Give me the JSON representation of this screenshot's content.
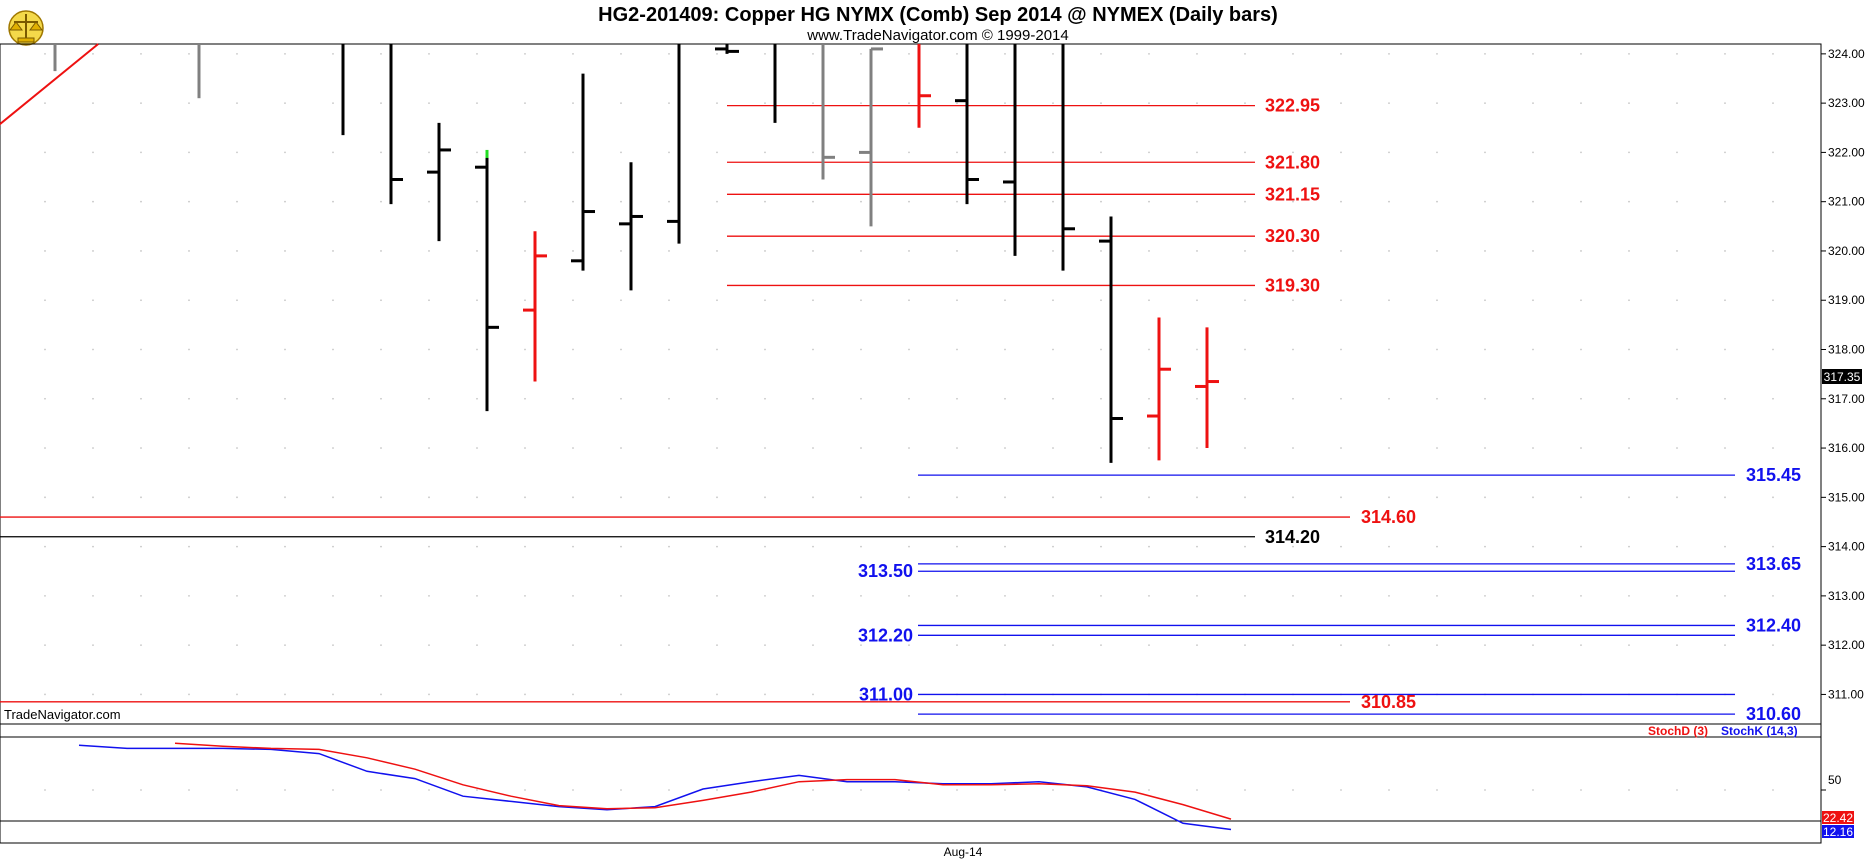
{
  "header": {
    "title": "HG2-201409:  Copper HG NYMX (Comb) Sep 2014 @ NYMEX  (Daily bars)",
    "subtitle": "www.TradeNavigator.com © 1999-2014",
    "logo_icon": "trade-navigator-scale-logo"
  },
  "watermark": "TradeNavigator.com",
  "colors": {
    "black": "#000000",
    "red": "#ee1111",
    "blue": "#1111ee",
    "gray": "#808080",
    "green": "#22dd22",
    "grid": "#c8c8c8"
  },
  "chart_data": [
    {
      "type": "ohlc",
      "title": "HG2-201409:  Copper HG NYMX (Comb) Sep 2014 @ NYMEX  (Daily bars)",
      "xlabel": "Aug-14",
      "ylim": [
        310.4,
        324.2
      ],
      "y_ticks": [
        "324.00",
        "323.00",
        "322.00",
        "321.00",
        "320.00",
        "319.00",
        "318.00",
        "317.00",
        "316.00",
        "315.00",
        "314.00",
        "313.00",
        "312.00",
        "311.00"
      ],
      "last_price": "317.35",
      "bars": [
        {
          "i": 1,
          "color": "gray",
          "high": 324.2,
          "low": 323.65,
          "open": null,
          "close": null
        },
        {
          "i": 4,
          "color": "gray",
          "high": 324.2,
          "low": 323.1,
          "open": null,
          "close": null
        },
        {
          "i": 7,
          "color": "black",
          "high": 324.2,
          "low": 322.35,
          "open": null,
          "close": null
        },
        {
          "i": 8,
          "color": "black",
          "high": 324.2,
          "low": 320.95,
          "open": null,
          "close": 321.45
        },
        {
          "i": 9,
          "color": "black",
          "high": 322.6,
          "low": 320.2,
          "open": 321.6,
          "close": 322.05
        },
        {
          "i": 10,
          "color": "black",
          "high": 322.05,
          "low": 316.75,
          "open": 321.7,
          "close": 318.45,
          "high_marker": "green"
        },
        {
          "i": 11,
          "color": "red",
          "high": 320.4,
          "low": 317.35,
          "open": 318.8,
          "close": 319.9
        },
        {
          "i": 12,
          "color": "black",
          "high": 323.6,
          "low": 319.6,
          "open": 319.8,
          "close": 320.8
        },
        {
          "i": 13,
          "color": "black",
          "high": 321.8,
          "low": 319.2,
          "open": 320.55,
          "close": 320.7
        },
        {
          "i": 14,
          "color": "black",
          "high": 324.2,
          "low": 320.15,
          "open": 320.6,
          "close": null
        },
        {
          "i": 15,
          "color": "black",
          "high": 324.2,
          "low": 324.0,
          "open": 324.1,
          "close": 324.05
        },
        {
          "i": 16,
          "color": "black",
          "high": 324.2,
          "low": 322.6,
          "open": null,
          "close": null
        },
        {
          "i": 17,
          "color": "gray",
          "high": 324.2,
          "low": 321.45,
          "open": null,
          "close": 321.9
        },
        {
          "i": 18,
          "color": "gray",
          "high": 324.1,
          "low": 320.5,
          "open": 322.0,
          "close": 324.1
        },
        {
          "i": 19,
          "color": "red",
          "high": 324.2,
          "low": 322.5,
          "open": null,
          "close": 323.15
        },
        {
          "i": 20,
          "color": "black",
          "high": 324.2,
          "low": 320.95,
          "open": 323.05,
          "close": 321.45
        },
        {
          "i": 21,
          "color": "black",
          "high": 324.2,
          "low": 319.9,
          "open": 321.4,
          "close": null
        },
        {
          "i": 22,
          "color": "black",
          "high": 324.2,
          "low": 319.6,
          "open": null,
          "close": 320.45
        },
        {
          "i": 23,
          "color": "black",
          "high": 320.7,
          "low": 315.7,
          "open": 320.2,
          "close": 316.6
        },
        {
          "i": 24,
          "color": "red",
          "high": 318.65,
          "low": 315.75,
          "open": 316.65,
          "close": 317.6
        },
        {
          "i": 25,
          "color": "red",
          "high": 318.45,
          "low": 316.0,
          "open": 317.25,
          "close": 317.35
        }
      ],
      "levels": [
        {
          "label": "322.95",
          "value": 322.95,
          "color": "red",
          "span": "mid",
          "label_pos": "mid-right"
        },
        {
          "label": "321.80",
          "value": 321.8,
          "color": "red",
          "span": "mid",
          "label_pos": "mid-right"
        },
        {
          "label": "321.15",
          "value": 321.15,
          "color": "red",
          "span": "mid",
          "label_pos": "mid-right"
        },
        {
          "label": "320.30",
          "value": 320.3,
          "color": "red",
          "span": "mid",
          "label_pos": "mid-right"
        },
        {
          "label": "319.30",
          "value": 319.3,
          "color": "red",
          "span": "mid",
          "label_pos": "mid-right"
        },
        {
          "label": "315.45",
          "value": 315.45,
          "color": "blue",
          "span": "right",
          "label_pos": "far-right"
        },
        {
          "label": "314.60",
          "value": 314.6,
          "color": "red",
          "span": "full",
          "label_pos": "mid-right2"
        },
        {
          "label": "314.20",
          "value": 314.2,
          "color": "black",
          "span": "full",
          "label_pos": "mid-right"
        },
        {
          "label": "313.65",
          "value": 313.65,
          "color": "blue",
          "span": "right",
          "label_pos": "far-right"
        },
        {
          "label": "313.50",
          "value": 313.5,
          "color": "blue",
          "span": "right",
          "label_pos": "left-of-line"
        },
        {
          "label": "312.40",
          "value": 312.4,
          "color": "blue",
          "span": "right",
          "label_pos": "far-right"
        },
        {
          "label": "312.20",
          "value": 312.2,
          "color": "blue",
          "span": "right",
          "label_pos": "left-of-line"
        },
        {
          "label": "311.00",
          "value": 311.0,
          "color": "blue",
          "span": "right",
          "label_pos": "left-of-line"
        },
        {
          "label": "310.85",
          "value": 310.85,
          "color": "red",
          "span": "full",
          "label_pos": "mid-right2"
        },
        {
          "label": "310.60",
          "value": 310.6,
          "color": "blue",
          "span": "right",
          "label_pos": "far-right"
        }
      ],
      "diagonal_trendline": {
        "color": "red",
        "from": {
          "i": -1.5,
          "y": 321.5
        },
        "to": {
          "i": 1.9,
          "y": 324.2
        }
      }
    },
    {
      "type": "line",
      "title": "",
      "ylim": [
        0,
        100
      ],
      "y_ticks": [
        "50"
      ],
      "legend": [
        {
          "name": "StochD (3)",
          "color": "red"
        },
        {
          "name": "StochK (14,3)",
          "color": "blue"
        }
      ],
      "last_values": {
        "StochD (3)": "22.42",
        "StochK (14,3)": "12.16"
      },
      "series": [
        {
          "name": "StochK (14,3)",
          "color": "blue",
          "values": [
            {
              "i": 1.5,
              "v": 93
            },
            {
              "i": 2.5,
              "v": 90
            },
            {
              "i": 3.5,
              "v": 90
            },
            {
              "i": 4.5,
              "v": 90
            },
            {
              "i": 5.5,
              "v": 89
            },
            {
              "i": 6.5,
              "v": 85
            },
            {
              "i": 7.5,
              "v": 68
            },
            {
              "i": 8.5,
              "v": 61
            },
            {
              "i": 9.5,
              "v": 44
            },
            {
              "i": 10.5,
              "v": 39
            },
            {
              "i": 11.5,
              "v": 34
            },
            {
              "i": 12.5,
              "v": 31
            },
            {
              "i": 13.5,
              "v": 34
            },
            {
              "i": 14.5,
              "v": 51
            },
            {
              "i": 15.5,
              "v": 58
            },
            {
              "i": 16.5,
              "v": 64
            },
            {
              "i": 17.5,
              "v": 58
            },
            {
              "i": 18.5,
              "v": 58
            },
            {
              "i": 19.5,
              "v": 56
            },
            {
              "i": 20.5,
              "v": 56
            },
            {
              "i": 21.5,
              "v": 58
            },
            {
              "i": 22.5,
              "v": 53
            },
            {
              "i": 23.5,
              "v": 41
            },
            {
              "i": 24.5,
              "v": 18
            },
            {
              "i": 25.5,
              "v": 12
            }
          ]
        },
        {
          "name": "StochD (3)",
          "color": "red",
          "values": [
            {
              "i": 3.5,
              "v": 95
            },
            {
              "i": 4.5,
              "v": 92
            },
            {
              "i": 5.5,
              "v": 90
            },
            {
              "i": 6.5,
              "v": 89
            },
            {
              "i": 7.5,
              "v": 81
            },
            {
              "i": 8.5,
              "v": 70
            },
            {
              "i": 9.5,
              "v": 55
            },
            {
              "i": 10.5,
              "v": 44
            },
            {
              "i": 11.5,
              "v": 35
            },
            {
              "i": 12.5,
              "v": 32
            },
            {
              "i": 13.5,
              "v": 33
            },
            {
              "i": 14.5,
              "v": 40
            },
            {
              "i": 15.5,
              "v": 48
            },
            {
              "i": 16.5,
              "v": 58
            },
            {
              "i": 17.5,
              "v": 60
            },
            {
              "i": 18.5,
              "v": 60
            },
            {
              "i": 19.5,
              "v": 55
            },
            {
              "i": 20.5,
              "v": 55
            },
            {
              "i": 21.5,
              "v": 56
            },
            {
              "i": 22.5,
              "v": 54
            },
            {
              "i": 23.5,
              "v": 48
            },
            {
              "i": 24.5,
              "v": 36
            },
            {
              "i": 25.5,
              "v": 22
            }
          ]
        }
      ]
    }
  ]
}
